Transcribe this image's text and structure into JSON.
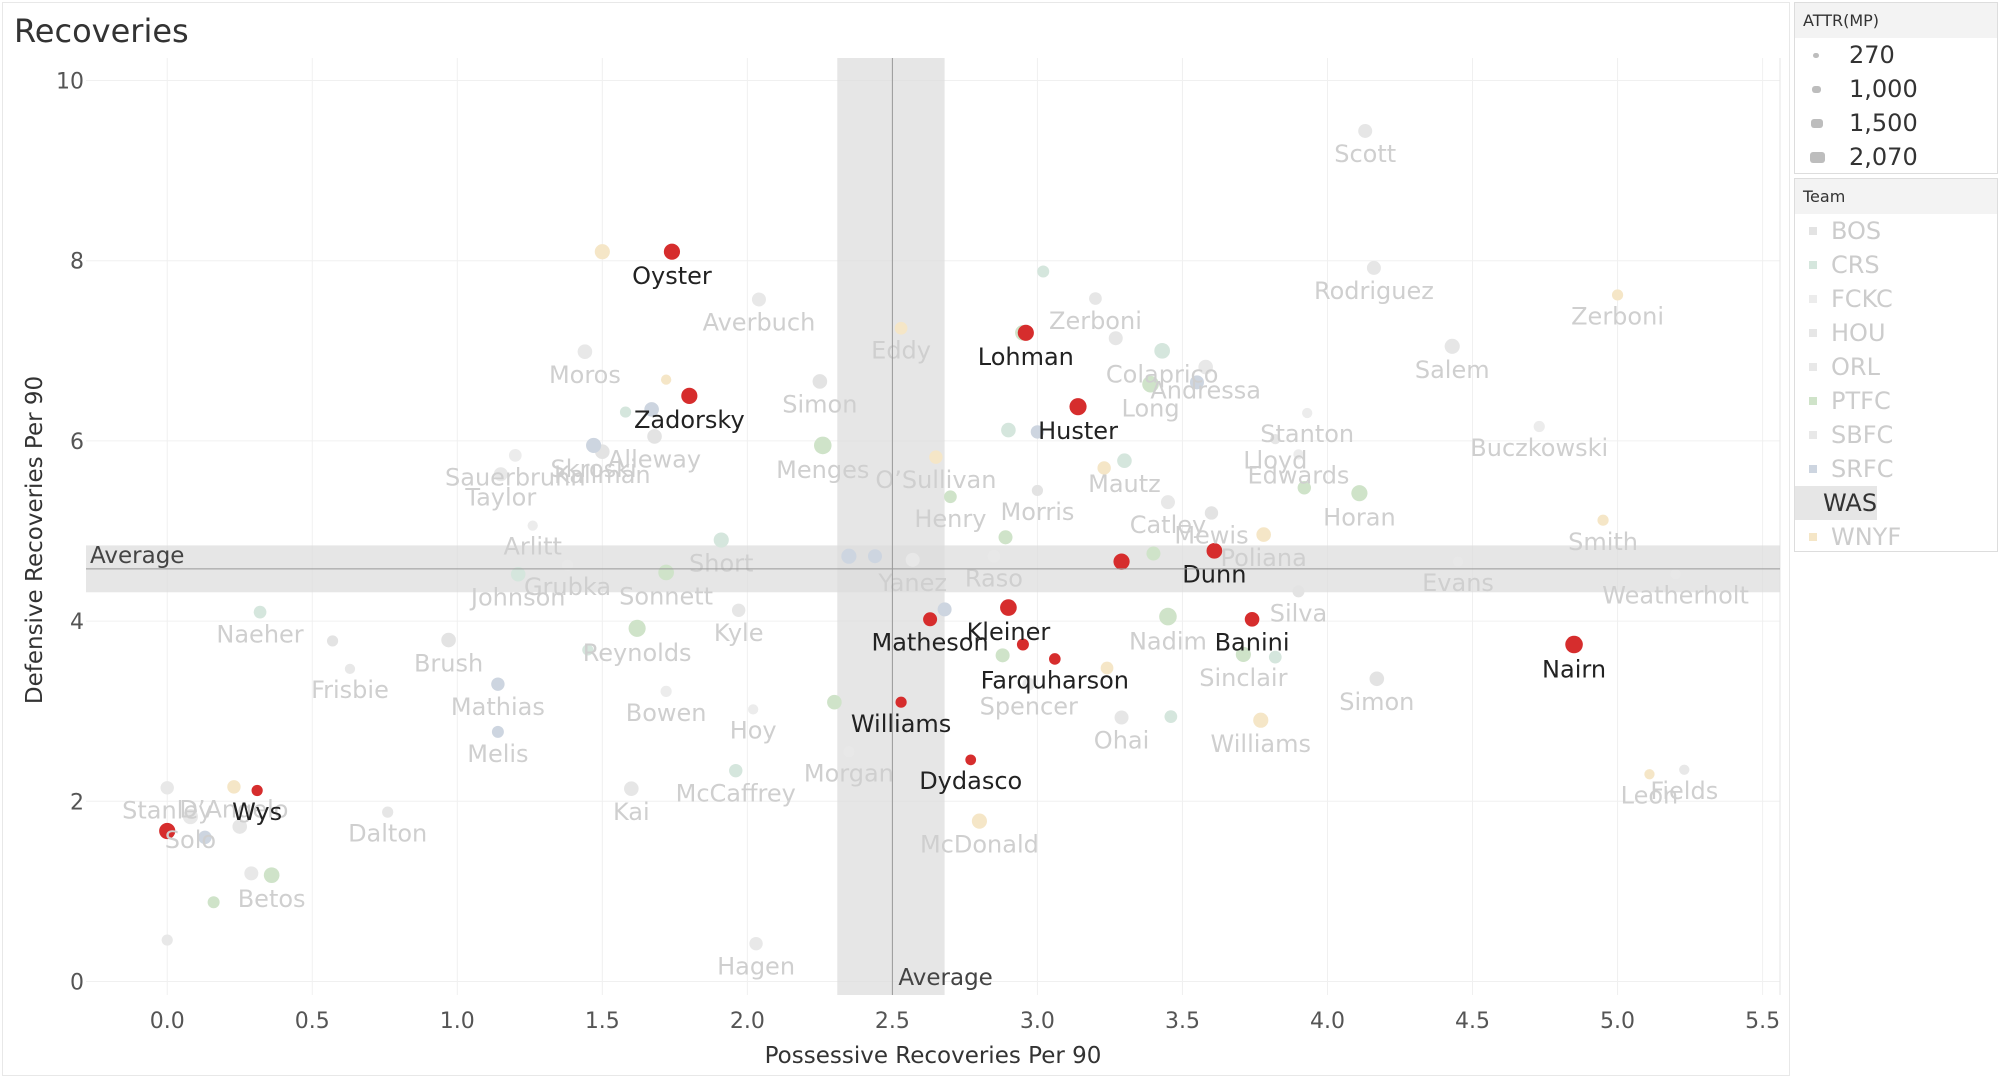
{
  "colors": {
    "WAS": "#d62d2d",
    "highlight_text": "#222222",
    "faded_text": "#cfcfcf",
    "band": "#dcdcdc",
    "refline": "#999999",
    "grid": "#f0f0f0",
    "axis_text": "#555555",
    "BOS": "#e3e3e3",
    "CRS": "#d5e6dd",
    "FCKC": "#ececec",
    "HOU": "#e6e6e6",
    "ORL": "#e8e8e8",
    "PTFC": "#cfe3c9",
    "SBFC": "#e8e8e8",
    "SRFC": "#cdd5e0",
    "WNYF": "#f5e6c7"
  },
  "legend": {
    "size_title": "ATTR(MP)",
    "size_items": [
      "270",
      "1,000",
      "1,500",
      "2,070"
    ],
    "team_title": "Team",
    "teams": [
      {
        "name": "BOS",
        "selected": false
      },
      {
        "name": "CRS",
        "selected": false
      },
      {
        "name": "FCKC",
        "selected": false
      },
      {
        "name": "HOU",
        "selected": false
      },
      {
        "name": "ORL",
        "selected": false
      },
      {
        "name": "PTFC",
        "selected": false
      },
      {
        "name": "SBFC",
        "selected": false
      },
      {
        "name": "SRFC",
        "selected": false
      },
      {
        "name": "WAS",
        "selected": true
      },
      {
        "name": "WNYF",
        "selected": false
      }
    ]
  },
  "chart_data": {
    "type": "scatter",
    "title": "Recoveries",
    "xlabel": "Possessive Recoveries Per 90",
    "ylabel": "Defensive Recoveries Per 90",
    "xlim": [
      -0.28,
      5.56
    ],
    "ylim": [
      -0.15,
      10.25
    ],
    "x_ticks": [
      "0.0",
      "0.5",
      "1.0",
      "1.5",
      "2.0",
      "2.5",
      "3.0",
      "3.5",
      "4.0",
      "4.5",
      "5.0",
      "5.5"
    ],
    "y_ticks": [
      "0",
      "2",
      "4",
      "6",
      "8",
      "10"
    ],
    "grid": true,
    "legend_position": "right",
    "reference_lines": {
      "x_average": {
        "label": "Average",
        "value": 2.5,
        "band": [
          2.31,
          2.68
        ]
      },
      "y_average": {
        "label": "Average",
        "value": 4.58,
        "band": [
          4.32,
          4.84
        ]
      }
    },
    "highlight_team": "WAS",
    "points": [
      {
        "label": "Oyster",
        "x": 1.74,
        "y": 8.1,
        "team": "WAS",
        "size": 1200
      },
      {
        "label": "Zadorsky",
        "x": 1.8,
        "y": 6.5,
        "team": "WAS",
        "size": 1200
      },
      {
        "label": "Lohman",
        "x": 2.96,
        "y": 7.2,
        "team": "WAS",
        "size": 1200
      },
      {
        "label": "Huster",
        "x": 3.14,
        "y": 6.38,
        "team": "WAS",
        "size": 1400
      },
      {
        "label": "Dunn",
        "x": 3.61,
        "y": 4.78,
        "team": "WAS",
        "size": 1100
      },
      {
        "label": "",
        "x": 3.29,
        "y": 4.66,
        "team": "WAS",
        "size": 1200
      },
      {
        "label": "Kleiner",
        "x": 2.9,
        "y": 4.15,
        "team": "WAS",
        "size": 1300
      },
      {
        "label": "Banini",
        "x": 3.74,
        "y": 4.02,
        "team": "WAS",
        "size": 900
      },
      {
        "label": "Matheson",
        "x": 2.63,
        "y": 4.02,
        "team": "WAS",
        "size": 800
      },
      {
        "label": "",
        "x": 2.95,
        "y": 3.74,
        "team": "WAS",
        "size": 500
      },
      {
        "label": "Farquharson",
        "x": 3.06,
        "y": 3.58,
        "team": "WAS",
        "size": 450
      },
      {
        "label": "Williams",
        "x": 2.53,
        "y": 3.1,
        "team": "WAS",
        "size": 400
      },
      {
        "label": "Dydasco",
        "x": 2.77,
        "y": 2.46,
        "team": "WAS",
        "size": 350
      },
      {
        "label": "Nairn",
        "x": 4.85,
        "y": 3.74,
        "team": "WAS",
        "size": 1500
      },
      {
        "label": "Wys",
        "x": 0.31,
        "y": 2.12,
        "team": "WAS",
        "size": 400
      },
      {
        "label": "",
        "x": 0.0,
        "y": 1.67,
        "team": "WAS",
        "size": 1200
      },
      {
        "label": "Scott",
        "x": 4.13,
        "y": 9.44,
        "team": "HOU",
        "size": 800
      },
      {
        "label": "Rodriguez",
        "x": 4.16,
        "y": 7.92,
        "team": "HOU",
        "size": 800
      },
      {
        "label": "Zerboni",
        "x": 5.0,
        "y": 7.62,
        "team": "WNYF",
        "size": 400
      },
      {
        "label": "Salem",
        "x": 4.43,
        "y": 7.05,
        "team": "HOU",
        "size": 1000
      },
      {
        "label": "Buczkowski",
        "x": 4.73,
        "y": 6.16,
        "team": "FCKC",
        "size": 400
      },
      {
        "label": "Stanton",
        "x": 3.93,
        "y": 6.31,
        "team": "FCKC",
        "size": 300
      },
      {
        "label": "Smith",
        "x": 4.95,
        "y": 5.12,
        "team": "WNYF",
        "size": 400
      },
      {
        "label": "Weatherholt",
        "x": 5.2,
        "y": 4.52,
        "team": "ORL",
        "size": 300
      },
      {
        "label": "Evans",
        "x": 4.45,
        "y": 4.66,
        "team": "ORL",
        "size": 300
      },
      {
        "label": "Fields",
        "x": 5.23,
        "y": 2.35,
        "team": "ORL",
        "size": 300
      },
      {
        "label": "Leon",
        "x": 5.11,
        "y": 2.3,
        "team": "WNYF",
        "size": 300
      },
      {
        "label": "Simon",
        "x": 4.17,
        "y": 3.36,
        "team": "BOS",
        "size": 900
      },
      {
        "label": "Horan",
        "x": 4.11,
        "y": 5.42,
        "team": "PTFC",
        "size": 1200
      },
      {
        "label": "Edwards",
        "x": 3.9,
        "y": 5.85,
        "team": "FCKC",
        "size": 300
      },
      {
        "label": "Lloyd",
        "x": 3.82,
        "y": 6.02,
        "team": "HOU",
        "size": 300
      },
      {
        "label": "Andressa",
        "x": 3.58,
        "y": 6.82,
        "team": "ORL",
        "size": 900
      },
      {
        "label": "Colaprico",
        "x": 3.43,
        "y": 7.0,
        "team": "CRS",
        "size": 1100
      },
      {
        "label": "Zerboni",
        "x": 3.2,
        "y": 7.58,
        "team": "HOU",
        "size": 600
      },
      {
        "label": "Long",
        "x": 3.39,
        "y": 6.63,
        "team": "PTFC",
        "size": 1300
      },
      {
        "label": "Mautz",
        "x": 3.3,
        "y": 5.78,
        "team": "CRS",
        "size": 900
      },
      {
        "label": "Catley",
        "x": 3.45,
        "y": 5.32,
        "team": "ORL",
        "size": 800
      },
      {
        "label": "Mewis",
        "x": 3.6,
        "y": 5.2,
        "team": "BOS",
        "size": 700
      },
      {
        "label": "Poliana",
        "x": 3.78,
        "y": 4.96,
        "team": "WNYF",
        "size": 900
      },
      {
        "label": "Silva",
        "x": 3.9,
        "y": 4.33,
        "team": "BOS",
        "size": 500
      },
      {
        "label": "Nadim",
        "x": 3.45,
        "y": 4.05,
        "team": "PTFC",
        "size": 1500
      },
      {
        "label": "Sinclair",
        "x": 3.71,
        "y": 3.63,
        "team": "PTFC",
        "size": 1000
      },
      {
        "label": "Williams",
        "x": 3.77,
        "y": 2.9,
        "team": "WNYF",
        "size": 1000
      },
      {
        "label": "Ohai",
        "x": 3.29,
        "y": 2.93,
        "team": "HOU",
        "size": 800
      },
      {
        "label": "Spencer",
        "x": 2.97,
        "y": 3.3,
        "team": "ORL",
        "size": 600
      },
      {
        "label": "Raso",
        "x": 2.85,
        "y": 4.72,
        "team": "ORL",
        "size": 600
      },
      {
        "label": "Morris",
        "x": 3.0,
        "y": 5.45,
        "team": "BOS",
        "size": 400
      },
      {
        "label": "Henry",
        "x": 2.7,
        "y": 5.38,
        "team": "PTFC",
        "size": 600
      },
      {
        "label": "Yanez",
        "x": 2.57,
        "y": 4.68,
        "team": "ORL",
        "size": 800
      },
      {
        "label": "O’Sullivan",
        "x": 2.65,
        "y": 5.82,
        "team": "WNYF",
        "size": 700
      },
      {
        "label": "Simon",
        "x": 2.25,
        "y": 6.66,
        "team": "BOS",
        "size": 900
      },
      {
        "label": "Eddy",
        "x": 2.53,
        "y": 7.25,
        "team": "WNYF",
        "size": 600
      },
      {
        "label": "Menges",
        "x": 2.26,
        "y": 5.95,
        "team": "PTFC",
        "size": 1500
      },
      {
        "label": "Averbuch",
        "x": 2.04,
        "y": 7.57,
        "team": "ORL",
        "size": 800
      },
      {
        "label": "Short",
        "x": 1.91,
        "y": 4.9,
        "team": "CRS",
        "size": 1000
      },
      {
        "label": "Kyle",
        "x": 1.97,
        "y": 4.12,
        "team": "HOU",
        "size": 700
      },
      {
        "label": "Sonnett",
        "x": 1.72,
        "y": 4.54,
        "team": "PTFC",
        "size": 1100
      },
      {
        "label": "Reynolds",
        "x": 1.62,
        "y": 3.92,
        "team": "PTFC",
        "size": 1400
      },
      {
        "label": "Bowen",
        "x": 1.72,
        "y": 3.22,
        "team": "FCKC",
        "size": 400
      },
      {
        "label": "McCaffrey",
        "x": 1.96,
        "y": 2.34,
        "team": "CRS",
        "size": 700
      },
      {
        "label": "Hoy",
        "x": 2.02,
        "y": 3.02,
        "team": "FCKC",
        "size": 300
      },
      {
        "label": "Morgan",
        "x": 2.35,
        "y": 2.55,
        "team": "ORL",
        "size": 400
      },
      {
        "label": "McDonald",
        "x": 2.8,
        "y": 1.78,
        "team": "WNYF",
        "size": 1000
      },
      {
        "label": "Hagen",
        "x": 2.03,
        "y": 0.42,
        "team": "ORL",
        "size": 700
      },
      {
        "label": "Kai",
        "x": 1.6,
        "y": 2.14,
        "team": "HOU",
        "size": 900
      },
      {
        "label": "Alleway",
        "x": 1.68,
        "y": 6.05,
        "team": "BOS",
        "size": 900
      },
      {
        "label": "Kallman",
        "x": 1.5,
        "y": 5.88,
        "team": "BOS",
        "size": 900
      },
      {
        "label": "Moros",
        "x": 1.44,
        "y": 6.99,
        "team": "ORL",
        "size": 900
      },
      {
        "label": "Skroski",
        "x": 1.47,
        "y": 5.95,
        "team": "SRFC",
        "size": 1000
      },
      {
        "label": "Sauerbrunn",
        "x": 1.2,
        "y": 5.84,
        "team": "FCKC",
        "size": 600
      },
      {
        "label": "Taylor",
        "x": 1.15,
        "y": 5.63,
        "team": "ORL",
        "size": 800
      },
      {
        "label": "Arlitt",
        "x": 1.26,
        "y": 5.06,
        "team": "FCKC",
        "size": 300
      },
      {
        "label": "Grubka",
        "x": 1.38,
        "y": 4.62,
        "team": "ORL",
        "size": 400
      },
      {
        "label": "Johnson",
        "x": 1.21,
        "y": 4.52,
        "team": "CRS",
        "size": 900
      },
      {
        "label": "Naeher",
        "x": 0.32,
        "y": 4.1,
        "team": "CRS",
        "size": 600
      },
      {
        "label": "Brush",
        "x": 0.97,
        "y": 3.79,
        "team": "BOS",
        "size": 900
      },
      {
        "label": "Frisbie",
        "x": 0.63,
        "y": 3.47,
        "team": "ORL",
        "size": 300
      },
      {
        "label": "Mathias",
        "x": 1.14,
        "y": 3.3,
        "team": "SRFC",
        "size": 700
      },
      {
        "label": "Melis",
        "x": 1.14,
        "y": 2.77,
        "team": "SRFC",
        "size": 500
      },
      {
        "label": "Dalton",
        "x": 0.76,
        "y": 1.88,
        "team": "HOU",
        "size": 400
      },
      {
        "label": "Stanley",
        "x": 0.0,
        "y": 2.15,
        "team": "ORL",
        "size": 700
      },
      {
        "label": "D’Angelo",
        "x": 0.23,
        "y": 2.16,
        "team": "WNYF",
        "size": 700
      },
      {
        "label": "Solo",
        "x": 0.08,
        "y": 1.83,
        "team": "ORL",
        "size": 1000
      },
      {
        "label": "",
        "x": 0.13,
        "y": 1.6,
        "team": "SRFC",
        "size": 700
      },
      {
        "label": "",
        "x": 0.25,
        "y": 1.72,
        "team": "HOU",
        "size": 900
      },
      {
        "label": "",
        "x": 0.29,
        "y": 1.2,
        "team": "ORL",
        "size": 800
      },
      {
        "label": "Betos",
        "x": 0.36,
        "y": 1.18,
        "team": "PTFC",
        "size": 1100
      },
      {
        "label": "",
        "x": 0.16,
        "y": 0.88,
        "team": "PTFC",
        "size": 500
      },
      {
        "label": "",
        "x": 0.0,
        "y": 0.46,
        "team": "ORL",
        "size": 400
      },
      {
        "label": "",
        "x": 1.5,
        "y": 8.1,
        "team": "WNYF",
        "size": 1000
      },
      {
        "label": "",
        "x": 3.55,
        "y": 6.65,
        "team": "SRFC",
        "size": 800
      },
      {
        "label": "",
        "x": 3.0,
        "y": 6.1,
        "team": "SRFC",
        "size": 700
      },
      {
        "label": "",
        "x": 2.9,
        "y": 6.12,
        "team": "CRS",
        "size": 900
      },
      {
        "label": "",
        "x": 3.23,
        "y": 5.7,
        "team": "WNYF",
        "size": 700
      },
      {
        "label": "",
        "x": 2.89,
        "y": 4.93,
        "team": "PTFC",
        "size": 800
      },
      {
        "label": "",
        "x": 2.68,
        "y": 4.13,
        "team": "SRFC",
        "size": 800
      },
      {
        "label": "",
        "x": 2.44,
        "y": 4.72,
        "team": "SRFC",
        "size": 800
      },
      {
        "label": "",
        "x": 2.35,
        "y": 4.72,
        "team": "SRFC",
        "size": 1000
      },
      {
        "label": "",
        "x": 3.4,
        "y": 4.75,
        "team": "PTFC",
        "size": 800
      },
      {
        "label": "",
        "x": 3.92,
        "y": 5.48,
        "team": "PTFC",
        "size": 700
      },
      {
        "label": "",
        "x": 3.82,
        "y": 3.6,
        "team": "CRS",
        "size": 600
      },
      {
        "label": "",
        "x": 3.46,
        "y": 2.94,
        "team": "CRS",
        "size": 600
      },
      {
        "label": "",
        "x": 3.24,
        "y": 3.48,
        "team": "WNYF",
        "size": 600
      },
      {
        "label": "",
        "x": 2.88,
        "y": 3.62,
        "team": "PTFC",
        "size": 800
      },
      {
        "label": "",
        "x": 2.3,
        "y": 3.1,
        "team": "PTFC",
        "size": 900
      },
      {
        "label": "",
        "x": 2.95,
        "y": 7.2,
        "team": "PTFC",
        "size": 1100
      },
      {
        "label": "",
        "x": 3.02,
        "y": 7.88,
        "team": "CRS",
        "size": 500
      },
      {
        "label": "",
        "x": 3.27,
        "y": 7.14,
        "team": "HOU",
        "size": 800
      },
      {
        "label": "",
        "x": 1.72,
        "y": 6.68,
        "team": "WNYF",
        "size": 300
      },
      {
        "label": "",
        "x": 1.67,
        "y": 6.35,
        "team": "SRFC",
        "size": 900
      },
      {
        "label": "",
        "x": 1.58,
        "y": 6.32,
        "team": "CRS",
        "size": 400
      },
      {
        "label": "",
        "x": 0.57,
        "y": 3.78,
        "team": "BOS",
        "size": 400
      },
      {
        "label": "",
        "x": 1.45,
        "y": 3.68,
        "team": "CRS",
        "size": 400
      }
    ]
  }
}
